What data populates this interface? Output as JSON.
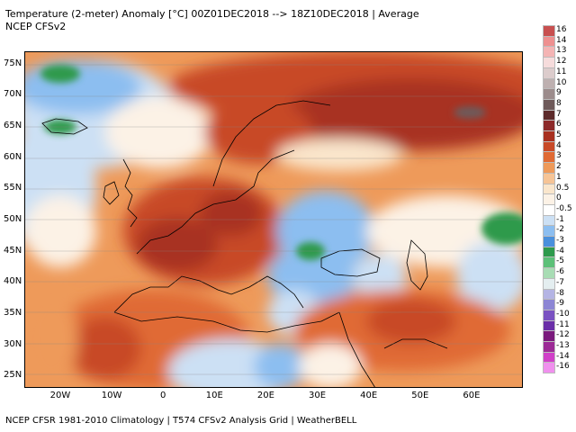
{
  "header": {
    "title": "Temperature (2-meter) Anomaly  [°C] 00Z01DEC2018 --> 18Z10DEC2018 | Average",
    "subtitle": "NCEP CFSv2"
  },
  "footer": {
    "text": "NCEP CFSR 1981-2010 Climatology | T574 CFSv2 Analysis Grid | WeatherBELL"
  },
  "map": {
    "lat_labels": [
      "75N",
      "70N",
      "65N",
      "60N",
      "55N",
      "50N",
      "45N",
      "40N",
      "35N",
      "30N",
      "25N"
    ],
    "lon_labels": [
      "20W",
      "10W",
      "0",
      "10E",
      "20E",
      "30E",
      "40E",
      "50E",
      "60E"
    ],
    "extent": {
      "lon": [
        -27,
        70
      ],
      "lat": [
        23,
        77
      ]
    }
  },
  "legend": {
    "labels": [
      "16",
      "14",
      "13",
      "12",
      "11",
      "10",
      "9",
      "8",
      "7",
      "6",
      "5",
      "4",
      "3",
      "2",
      "1",
      "0.5",
      "0",
      "-0.5",
      "-1",
      "-2",
      "-3",
      "-4",
      "-5",
      "-6",
      "-7",
      "-8",
      "-9",
      "-10",
      "-11",
      "-12",
      "-13",
      "-14",
      "-16"
    ],
    "colors": [
      "#c85050",
      "#ee9090",
      "#f4b4b4",
      "#f6dcdc",
      "#dccccc",
      "#beb0b0",
      "#9c8c8c",
      "#6e5a5a",
      "#5c2a2a",
      "#8c2a2a",
      "#a83020",
      "#c84a28",
      "#e06a34",
      "#ee9a5a",
      "#f6c496",
      "#fae6cc",
      "#fcf2e6",
      "#ffffff",
      "#cce0f4",
      "#8cbef0",
      "#4a90dc",
      "#2e9a4c",
      "#5cc078",
      "#a8dcb4",
      "#e4eef0",
      "#b4b4e4",
      "#8c86d4",
      "#7a52c2",
      "#6a2ea8",
      "#7a1a7c",
      "#9c2a96",
      "#d040c8",
      "#f090ee"
    ],
    "zero_color": "#ffffff"
  }
}
